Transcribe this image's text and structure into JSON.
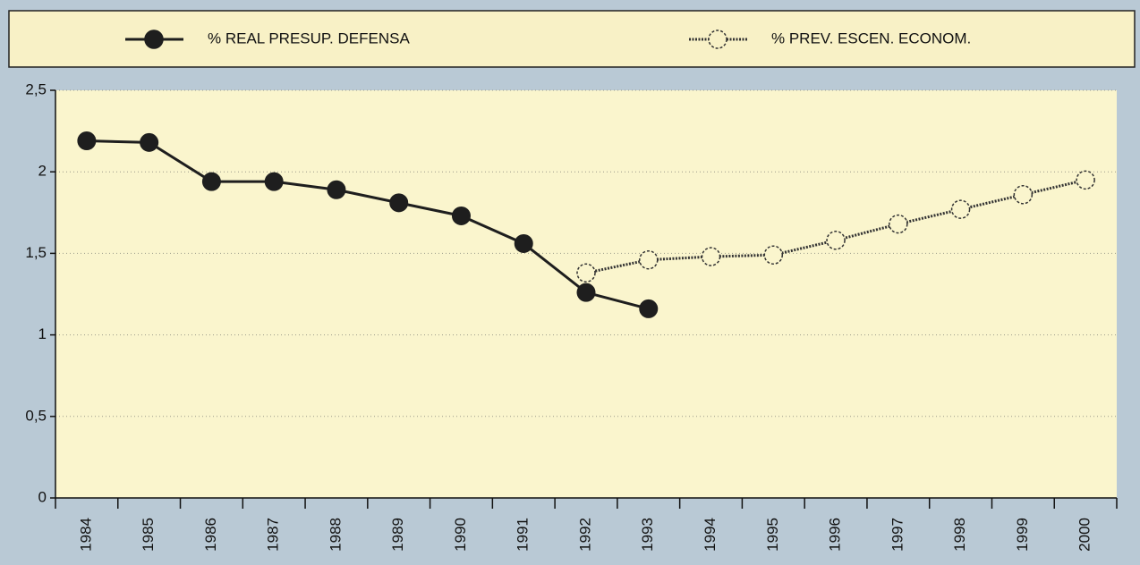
{
  "chart_data": {
    "type": "line",
    "categories": [
      "1984",
      "1985",
      "1986",
      "1987",
      "1988",
      "1989",
      "1990",
      "1991",
      "1992",
      "1993",
      "1994",
      "1995",
      "1996",
      "1997",
      "1998",
      "1999",
      "2000"
    ],
    "series": [
      {
        "name": "% REAL PRESUP. DEFENSA",
        "color": "#1e1e1e",
        "filled": true,
        "dashed": false,
        "values": [
          2.19,
          2.18,
          1.94,
          1.94,
          1.89,
          1.81,
          1.73,
          1.56,
          1.26,
          1.16,
          null,
          null,
          null,
          null,
          null,
          null,
          null
        ]
      },
      {
        "name": "% PREV. ESCEN. ECONOM.",
        "color": "#333333",
        "filled": false,
        "dashed": true,
        "values": [
          null,
          null,
          null,
          null,
          null,
          null,
          null,
          null,
          1.38,
          1.46,
          1.48,
          1.49,
          1.58,
          1.68,
          1.77,
          1.86,
          1.95
        ]
      }
    ],
    "ylim": [
      0,
      2.5
    ],
    "yticks": [
      0,
      {
        "value": 0.5,
        "label": "0,5"
      },
      1,
      {
        "value": 1.5,
        "label": "1,5"
      },
      2,
      {
        "value": 2.5,
        "label": "2,5"
      }
    ],
    "grid": true
  }
}
